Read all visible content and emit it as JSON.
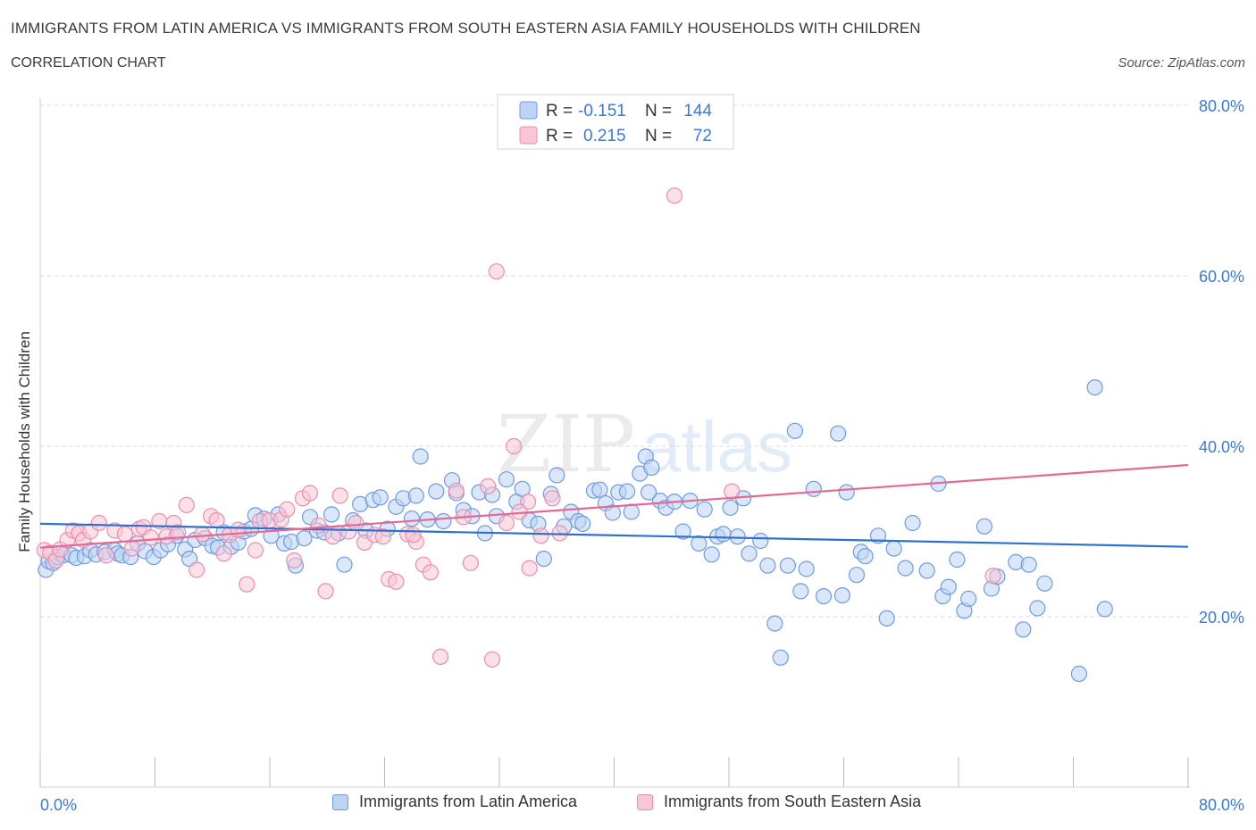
{
  "header": {
    "title": "IMMIGRANTS FROM LATIN AMERICA VS IMMIGRANTS FROM SOUTH EASTERN ASIA FAMILY HOUSEHOLDS WITH CHILDREN",
    "subtitle": "CORRELATION CHART",
    "source": "Source: ZipAtlas.com"
  },
  "watermark": {
    "zip": "ZIP",
    "atlas": "atlas"
  },
  "legend_top": {
    "rows": [
      {
        "r_label": "R =",
        "r_value": "-0.151",
        "n_label": "N =",
        "n_value": "144"
      },
      {
        "r_label": "R =",
        "r_value": "0.215",
        "n_label": "N =",
        "n_value": "72"
      }
    ]
  },
  "legend_bottom": {
    "items": [
      {
        "label": "Immigrants from Latin America"
      },
      {
        "label": "Immigrants from South Eastern Asia"
      }
    ]
  },
  "colors": {
    "blue_fill": "#bcd3f5",
    "blue_stroke": "#6f9be0",
    "blue_line": "#2f6fd0",
    "pink_fill": "#f8c6d5",
    "pink_stroke": "#ea8fab",
    "pink_line": "#e46894",
    "tick_label": "#3b78d8",
    "grid": "#d9d9d9"
  },
  "chart_data": {
    "type": "scatter",
    "title": "IMMIGRANTS FROM LATIN AMERICA VS IMMIGRANTS FROM SOUTH EASTERN ASIA FAMILY HOUSEHOLDS WITH CHILDREN",
    "xlabel": "",
    "ylabel": "Family Households with Children",
    "xlim": [
      0,
      80
    ],
    "ylim": [
      0,
      80
    ],
    "x_tick_labels": [
      "0.0%",
      "80.0%"
    ],
    "y_tick_labels": [
      "20.0%",
      "40.0%",
      "60.0%",
      "80.0%"
    ],
    "y_ticks": [
      20,
      40,
      60,
      80
    ],
    "grid": true,
    "legend_position": "top-center",
    "series": [
      {
        "name": "Immigrants from Latin America",
        "color": "blue",
        "R": -0.151,
        "N": 144,
        "trend": {
          "x": [
            0,
            80
          ],
          "y": [
            30.9,
            28.2
          ]
        },
        "points": [
          [
            0.4,
            25.5
          ],
          [
            0.6,
            26.5
          ],
          [
            0.9,
            26.3
          ],
          [
            1.2,
            27.0
          ],
          [
            1.6,
            27.2
          ],
          [
            2.2,
            27.2
          ],
          [
            2.5,
            26.9
          ],
          [
            3.1,
            27.1
          ],
          [
            3.5,
            27.8
          ],
          [
            3.9,
            27.3
          ],
          [
            4.5,
            27.6
          ],
          [
            5.2,
            27.8
          ],
          [
            5.4,
            27.4
          ],
          [
            5.7,
            27.2
          ],
          [
            6.3,
            27.0
          ],
          [
            6.8,
            28.6
          ],
          [
            7.3,
            27.7
          ],
          [
            7.9,
            27.0
          ],
          [
            8.4,
            27.8
          ],
          [
            8.9,
            28.5
          ],
          [
            9.5,
            29.5
          ],
          [
            10.1,
            27.9
          ],
          [
            10.4,
            26.8
          ],
          [
            10.8,
            29.0
          ],
          [
            11.5,
            29.2
          ],
          [
            12.0,
            28.3
          ],
          [
            12.4,
            28.1
          ],
          [
            12.8,
            29.9
          ],
          [
            13.3,
            28.2
          ],
          [
            13.8,
            28.7
          ],
          [
            14.2,
            30.0
          ],
          [
            14.7,
            30.3
          ],
          [
            15.0,
            31.9
          ],
          [
            15.6,
            31.5
          ],
          [
            16.1,
            29.5
          ],
          [
            16.6,
            32.0
          ],
          [
            17.0,
            28.6
          ],
          [
            17.5,
            28.8
          ],
          [
            17.8,
            26.0
          ],
          [
            18.4,
            29.2
          ],
          [
            18.8,
            31.7
          ],
          [
            19.3,
            30.1
          ],
          [
            19.8,
            29.9
          ],
          [
            20.3,
            32.0
          ],
          [
            20.8,
            29.8
          ],
          [
            21.2,
            26.1
          ],
          [
            21.8,
            31.3
          ],
          [
            22.3,
            33.2
          ],
          [
            22.7,
            30.1
          ],
          [
            23.2,
            33.7
          ],
          [
            23.7,
            34.0
          ],
          [
            24.2,
            30.3
          ],
          [
            24.8,
            32.9
          ],
          [
            25.3,
            33.9
          ],
          [
            25.9,
            31.5
          ],
          [
            26.2,
            34.2
          ],
          [
            26.5,
            38.8
          ],
          [
            27.0,
            31.4
          ],
          [
            27.6,
            34.7
          ],
          [
            28.1,
            31.2
          ],
          [
            28.7,
            36.0
          ],
          [
            29.0,
            34.5
          ],
          [
            29.5,
            32.5
          ],
          [
            30.1,
            31.8
          ],
          [
            30.6,
            34.6
          ],
          [
            31.0,
            29.8
          ],
          [
            31.5,
            34.3
          ],
          [
            31.8,
            31.8
          ],
          [
            32.5,
            36.1
          ],
          [
            33.2,
            33.5
          ],
          [
            33.6,
            35.0
          ],
          [
            34.1,
            31.3
          ],
          [
            34.7,
            30.9
          ],
          [
            35.1,
            26.8
          ],
          [
            35.6,
            34.4
          ],
          [
            36.0,
            36.6
          ],
          [
            36.5,
            30.6
          ],
          [
            37.0,
            32.3
          ],
          [
            37.5,
            31.2
          ],
          [
            37.8,
            30.9
          ],
          [
            38.6,
            34.8
          ],
          [
            39.0,
            34.9
          ],
          [
            39.4,
            33.3
          ],
          [
            39.9,
            32.2
          ],
          [
            40.3,
            34.6
          ],
          [
            40.9,
            34.7
          ],
          [
            41.2,
            32.3
          ],
          [
            41.8,
            36.8
          ],
          [
            42.2,
            38.8
          ],
          [
            42.6,
            37.5
          ],
          [
            43.2,
            33.6
          ],
          [
            43.6,
            32.8
          ],
          [
            44.2,
            33.5
          ],
          [
            44.8,
            30.0
          ],
          [
            45.3,
            33.6
          ],
          [
            45.9,
            28.6
          ],
          [
            46.3,
            32.6
          ],
          [
            46.8,
            27.3
          ],
          [
            47.2,
            29.4
          ],
          [
            47.6,
            29.7
          ],
          [
            48.1,
            32.8
          ],
          [
            48.6,
            29.4
          ],
          [
            49.0,
            33.9
          ],
          [
            49.4,
            27.4
          ],
          [
            50.2,
            28.9
          ],
          [
            50.7,
            26.0
          ],
          [
            51.2,
            19.2
          ],
          [
            51.6,
            15.2
          ],
          [
            52.1,
            26.0
          ],
          [
            52.6,
            41.8
          ],
          [
            53.0,
            23.0
          ],
          [
            53.4,
            25.6
          ],
          [
            53.9,
            35.0
          ],
          [
            54.6,
            22.4
          ],
          [
            55.6,
            41.5
          ],
          [
            55.9,
            22.5
          ],
          [
            56.2,
            34.6
          ],
          [
            56.9,
            24.9
          ],
          [
            57.2,
            27.6
          ],
          [
            57.5,
            27.1
          ],
          [
            58.4,
            29.5
          ],
          [
            59.0,
            19.8
          ],
          [
            59.5,
            28.0
          ],
          [
            60.3,
            25.7
          ],
          [
            60.8,
            31.0
          ],
          [
            61.8,
            25.4
          ],
          [
            62.6,
            35.6
          ],
          [
            62.9,
            22.4
          ],
          [
            63.3,
            23.5
          ],
          [
            63.9,
            26.7
          ],
          [
            64.4,
            20.7
          ],
          [
            64.7,
            22.1
          ],
          [
            65.8,
            30.6
          ],
          [
            66.3,
            23.3
          ],
          [
            66.7,
            24.7
          ],
          [
            68.0,
            26.4
          ],
          [
            68.5,
            18.5
          ],
          [
            68.9,
            26.1
          ],
          [
            69.5,
            21.0
          ],
          [
            70.0,
            23.9
          ],
          [
            72.4,
            13.3
          ],
          [
            73.5,
            46.9
          ],
          [
            74.2,
            20.9
          ],
          [
            42.4,
            34.6
          ]
        ]
      },
      {
        "name": "Immigrants from South Eastern Asia",
        "color": "pink",
        "R": 0.215,
        "N": 72,
        "trend": {
          "x": [
            0,
            80
          ],
          "y": [
            28.1,
            37.8
          ]
        },
        "points": [
          [
            0.3,
            27.8
          ],
          [
            0.7,
            27.5
          ],
          [
            1.1,
            26.6
          ],
          [
            1.4,
            27.9
          ],
          [
            1.9,
            29.0
          ],
          [
            2.3,
            30.1
          ],
          [
            2.7,
            29.8
          ],
          [
            3.0,
            29.0
          ],
          [
            3.5,
            30.0
          ],
          [
            4.1,
            31.0
          ],
          [
            4.6,
            27.2
          ],
          [
            5.2,
            30.1
          ],
          [
            5.9,
            29.7
          ],
          [
            6.4,
            28.0
          ],
          [
            6.9,
            30.3
          ],
          [
            7.2,
            30.5
          ],
          [
            7.7,
            29.3
          ],
          [
            8.3,
            31.2
          ],
          [
            8.8,
            29.4
          ],
          [
            9.3,
            31.0
          ],
          [
            9.6,
            29.9
          ],
          [
            10.2,
            33.1
          ],
          [
            10.9,
            25.5
          ],
          [
            11.3,
            29.7
          ],
          [
            11.9,
            31.8
          ],
          [
            12.3,
            31.3
          ],
          [
            12.8,
            27.4
          ],
          [
            13.2,
            29.6
          ],
          [
            13.8,
            30.2
          ],
          [
            14.4,
            23.8
          ],
          [
            15.0,
            27.8
          ],
          [
            15.3,
            31.2
          ],
          [
            16.0,
            31.3
          ],
          [
            16.8,
            31.4
          ],
          [
            17.2,
            32.6
          ],
          [
            17.7,
            26.6
          ],
          [
            18.3,
            33.9
          ],
          [
            18.8,
            34.5
          ],
          [
            19.4,
            30.7
          ],
          [
            19.9,
            23.0
          ],
          [
            20.4,
            29.4
          ],
          [
            20.9,
            34.2
          ],
          [
            21.5,
            30.0
          ],
          [
            22.0,
            31.0
          ],
          [
            22.6,
            28.7
          ],
          [
            23.3,
            29.6
          ],
          [
            23.9,
            29.4
          ],
          [
            24.3,
            24.4
          ],
          [
            24.8,
            24.1
          ],
          [
            25.6,
            29.7
          ],
          [
            26.2,
            28.8
          ],
          [
            26.7,
            26.1
          ],
          [
            27.2,
            25.2
          ],
          [
            27.9,
            15.3
          ],
          [
            29.5,
            31.7
          ],
          [
            30.0,
            26.3
          ],
          [
            31.5,
            15.0
          ],
          [
            31.8,
            60.5
          ],
          [
            32.5,
            31.0
          ],
          [
            33.0,
            40.0
          ],
          [
            34.1,
            25.7
          ],
          [
            34.9,
            29.5
          ],
          [
            35.7,
            33.9
          ],
          [
            36.2,
            29.8
          ],
          [
            44.2,
            69.4
          ],
          [
            48.2,
            34.7
          ],
          [
            66.4,
            24.8
          ],
          [
            29.0,
            34.8
          ],
          [
            31.2,
            35.3
          ],
          [
            34.0,
            33.5
          ],
          [
            26.0,
            29.6
          ],
          [
            33.4,
            32.3
          ]
        ]
      }
    ]
  }
}
